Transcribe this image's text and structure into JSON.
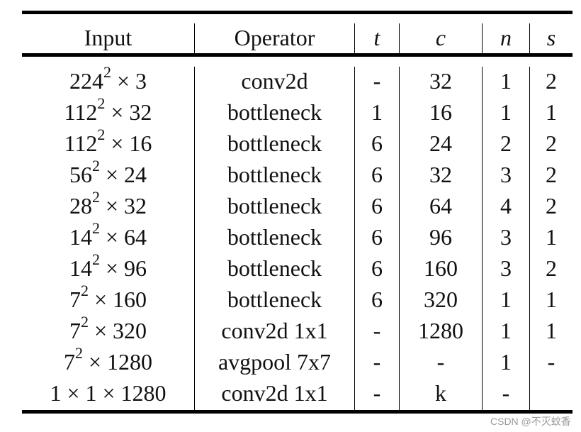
{
  "table": {
    "headers": [
      "Input",
      "Operator",
      "t",
      "c",
      "n",
      "s"
    ],
    "rows": [
      {
        "input_base": "224",
        "input_exp": "2",
        "input_rest": " × 3",
        "operator": "conv2d",
        "t": "-",
        "c": "32",
        "n": "1",
        "s": "2"
      },
      {
        "input_base": "112",
        "input_exp": "2",
        "input_rest": " × 32",
        "operator": "bottleneck",
        "t": "1",
        "c": "16",
        "n": "1",
        "s": "1"
      },
      {
        "input_base": "112",
        "input_exp": "2",
        "input_rest": " × 16",
        "operator": "bottleneck",
        "t": "6",
        "c": "24",
        "n": "2",
        "s": "2"
      },
      {
        "input_base": "56",
        "input_exp": "2",
        "input_rest": " × 24",
        "operator": "bottleneck",
        "t": "6",
        "c": "32",
        "n": "3",
        "s": "2"
      },
      {
        "input_base": "28",
        "input_exp": "2",
        "input_rest": " × 32",
        "operator": "bottleneck",
        "t": "6",
        "c": "64",
        "n": "4",
        "s": "2"
      },
      {
        "input_base": "14",
        "input_exp": "2",
        "input_rest": " × 64",
        "operator": "bottleneck",
        "t": "6",
        "c": "96",
        "n": "3",
        "s": "1"
      },
      {
        "input_base": "14",
        "input_exp": "2",
        "input_rest": " × 96",
        "operator": "bottleneck",
        "t": "6",
        "c": "160",
        "n": "3",
        "s": "2"
      },
      {
        "input_base": "7",
        "input_exp": "2",
        "input_rest": " × 160",
        "operator": "bottleneck",
        "t": "6",
        "c": "320",
        "n": "1",
        "s": "1"
      },
      {
        "input_base": "7",
        "input_exp": "2",
        "input_rest": " × 320",
        "operator": "conv2d 1x1",
        "t": "-",
        "c": "1280",
        "n": "1",
        "s": "1"
      },
      {
        "input_base": "7",
        "input_exp": "2",
        "input_rest": " × 1280",
        "operator": "avgpool 7x7",
        "t": "-",
        "c": "-",
        "n": "1",
        "s": "-"
      },
      {
        "input_base": "1 × 1 × 1280",
        "input_exp": "",
        "input_rest": "",
        "operator": "conv2d 1x1",
        "t": "-",
        "c": "k",
        "n": "-",
        "s": ""
      }
    ]
  },
  "watermark": "CSDN @不灭蚊香"
}
